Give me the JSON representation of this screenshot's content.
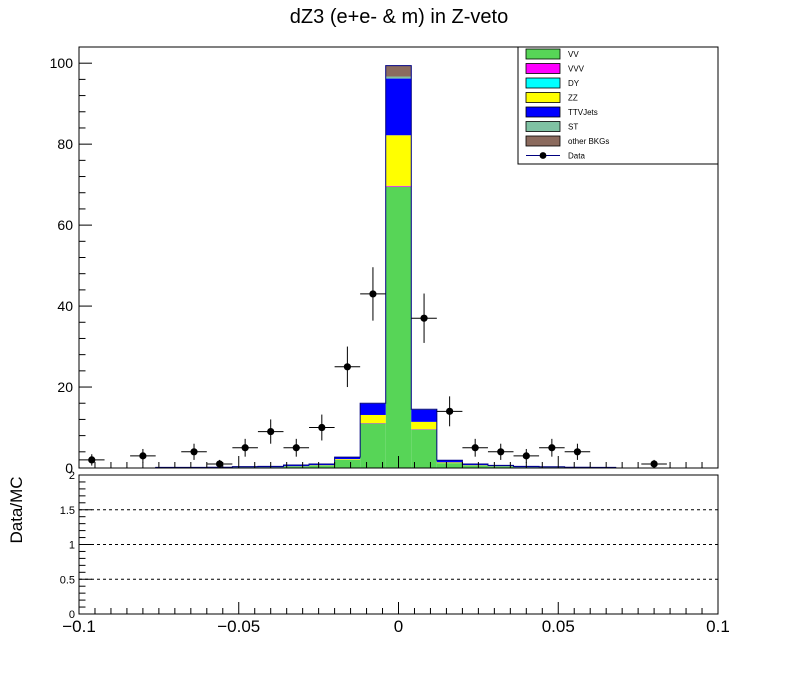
{
  "chart_data": [
    {
      "type": "bar",
      "stacked": true,
      "title": "dZ3 (e+e- & m) in Z-veto",
      "xlim": [
        -0.1,
        0.1
      ],
      "ylim": [
        0,
        104
      ],
      "x_ticks": [
        -0.1,
        -0.05,
        0,
        0.05,
        0.1
      ],
      "y_ticks": [
        0,
        20,
        40,
        60,
        80,
        100
      ],
      "bin_edges": [
        -0.1,
        -0.092,
        -0.084,
        -0.076,
        -0.068,
        -0.06,
        -0.052,
        -0.044,
        -0.036,
        -0.028,
        -0.02,
        -0.012,
        -0.004,
        0.004,
        0.012,
        0.02,
        0.028,
        0.036,
        0.044,
        0.052,
        0.06,
        0.068,
        0.076,
        0.084,
        0.092,
        0.1
      ],
      "series": [
        {
          "name": "VV",
          "color": "#57d557",
          "values": [
            0,
            0,
            0,
            0.1,
            0.1,
            0.1,
            0.2,
            0.2,
            0.4,
            0.6,
            2.0,
            11.0,
            69.5,
            9.5,
            1.2,
            0.6,
            0.4,
            0.2,
            0.2,
            0.1,
            0.1,
            0,
            0,
            0,
            0
          ]
        },
        {
          "name": "VVV",
          "color": "#ff00ff",
          "values": [
            0,
            0,
            0,
            0,
            0,
            0,
            0,
            0,
            0,
            0,
            0,
            0.1,
            0.2,
            0.1,
            0,
            0,
            0,
            0,
            0,
            0,
            0,
            0,
            0,
            0,
            0
          ]
        },
        {
          "name": "DY",
          "color": "#00ffff",
          "values": [
            0,
            0,
            0,
            0,
            0,
            0,
            0,
            0,
            0,
            0,
            0,
            0,
            0,
            0,
            0,
            0,
            0,
            0,
            0,
            0,
            0,
            0,
            0,
            0,
            0
          ]
        },
        {
          "name": "ZZ",
          "color": "#ffff00",
          "values": [
            0,
            0,
            0,
            0,
            0,
            0,
            0,
            0,
            0.05,
            0.1,
            0.2,
            2.0,
            12.5,
            1.8,
            0.2,
            0.1,
            0.05,
            0,
            0,
            0,
            0,
            0,
            0,
            0,
            0
          ]
        },
        {
          "name": "TTVJets",
          "color": "#0000ff",
          "values": [
            0,
            0,
            0,
            0.05,
            0.05,
            0.1,
            0.15,
            0.2,
            0.3,
            0.3,
            0.5,
            2.8,
            14.0,
            3.0,
            0.5,
            0.3,
            0.2,
            0.2,
            0.1,
            0.1,
            0.05,
            0,
            0,
            0,
            0
          ]
        },
        {
          "name": "ST",
          "color": "#7fc2a3",
          "values": [
            0,
            0,
            0,
            0,
            0,
            0,
            0,
            0,
            0,
            0,
            0,
            0.1,
            0.5,
            0.1,
            0,
            0,
            0,
            0,
            0,
            0,
            0,
            0,
            0,
            0,
            0
          ]
        },
        {
          "name": "other BKGs",
          "color": "#8b6b5e",
          "values": [
            0,
            0,
            0,
            0,
            0,
            0,
            0,
            0,
            0,
            0,
            0,
            0,
            2.7,
            0,
            0,
            0,
            0,
            0,
            0,
            0,
            0,
            0,
            0,
            0,
            0
          ]
        }
      ],
      "data": {
        "name": "Data",
        "color": "#000000",
        "points": [
          {
            "x": -0.096,
            "y": 2,
            "err": 1.4
          },
          {
            "x": -0.08,
            "y": 3,
            "err": 1.7
          },
          {
            "x": -0.064,
            "y": 4,
            "err": 2.0
          },
          {
            "x": -0.056,
            "y": 1,
            "err": 1.0
          },
          {
            "x": -0.048,
            "y": 5,
            "err": 2.2
          },
          {
            "x": -0.04,
            "y": 9,
            "err": 3.0
          },
          {
            "x": -0.032,
            "y": 5,
            "err": 2.2
          },
          {
            "x": -0.024,
            "y": 10,
            "err": 3.2
          },
          {
            "x": -0.016,
            "y": 25,
            "err": 5.0
          },
          {
            "x": -0.008,
            "y": 43,
            "err": 6.6
          },
          {
            "x": 0.008,
            "y": 37,
            "err": 6.1
          },
          {
            "x": 0.016,
            "y": 14,
            "err": 3.7
          },
          {
            "x": 0.024,
            "y": 5,
            "err": 2.2
          },
          {
            "x": 0.032,
            "y": 4,
            "err": 2.0
          },
          {
            "x": 0.04,
            "y": 3,
            "err": 1.7
          },
          {
            "x": 0.048,
            "y": 5,
            "err": 2.2
          },
          {
            "x": 0.056,
            "y": 4,
            "err": 2.0
          },
          {
            "x": 0.08,
            "y": 1,
            "err": 1.0
          }
        ]
      },
      "legend": {
        "placement": "top-right",
        "entries": [
          "VV",
          "VVV",
          "DY",
          "ZZ",
          "TTVJets",
          "ST",
          "other BKGs",
          "Data"
        ]
      }
    },
    {
      "type": "scatter",
      "ylabel": "Data/MC",
      "xlim": [
        -0.1,
        0.1
      ],
      "ylim": [
        0,
        2
      ],
      "x_ticks": [
        -0.1,
        -0.05,
        0,
        0.05,
        0.1
      ],
      "x_tick_labels": [
        "−0.1",
        "−0.05",
        "0",
        "0.05",
        "0.1"
      ],
      "y_ticks": [
        0,
        0.5,
        1,
        1.5,
        2
      ],
      "reference_lines": [
        0.5,
        1,
        1.5
      ],
      "points": []
    }
  ]
}
